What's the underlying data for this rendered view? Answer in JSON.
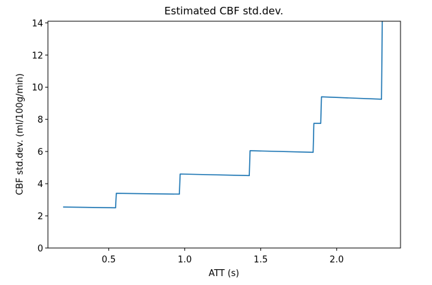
{
  "chart_data": {
    "type": "line",
    "title": "Estimated CBF std.dev.",
    "xlabel": "ATT (s)",
    "ylabel": "CBF std.dev. (ml/100g/min)",
    "xlim": [
      0.1,
      2.42
    ],
    "ylim": [
      0,
      14.1
    ],
    "grid": false,
    "legend": "none",
    "xticks": [
      0.5,
      1.0,
      1.5,
      2.0
    ],
    "xtick_labels": [
      "0.5",
      "1.0",
      "1.5",
      "2.0"
    ],
    "yticks": [
      0,
      2,
      4,
      6,
      8,
      10,
      12,
      14
    ],
    "ytick_labels": [
      "0",
      "2",
      "4",
      "6",
      "8",
      "10",
      "12",
      "14"
    ],
    "series": [
      {
        "name": "CBF std.dev.",
        "color": "#1f77b4",
        "x": [
          0.2,
          0.545,
          0.55,
          0.965,
          0.97,
          1.425,
          1.43,
          1.845,
          1.85,
          1.895,
          1.9,
          2.295,
          2.3
        ],
        "y": [
          2.55,
          2.5,
          3.4,
          3.35,
          4.6,
          4.5,
          6.05,
          5.95,
          7.75,
          7.75,
          9.4,
          9.25,
          14.1
        ]
      }
    ]
  }
}
